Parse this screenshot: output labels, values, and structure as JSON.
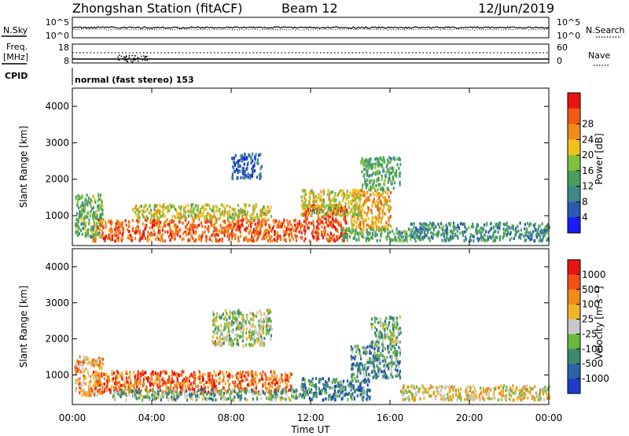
{
  "header": {
    "station": "Zhongshan Station (fitACF)",
    "beam": "Beam 12",
    "date": "12/Jun/2019",
    "cpid_label": "CPID",
    "cpid_value": "normal (fast stereo) 153"
  },
  "noise_panel": {
    "left_label": "N.Sky",
    "left_ticks": [
      "10^5",
      "10^0"
    ],
    "right_label": "N.Search",
    "right_ticks": [
      "10^5",
      "10^0"
    ]
  },
  "freq_panel": {
    "left_label_1": "Freq.",
    "left_label_2": "[MHz]",
    "left_ticks": [
      "18",
      "8"
    ],
    "right_label": "Nave",
    "right_ticks": [
      "60",
      "0"
    ]
  },
  "x_axis": {
    "label": "Time UT",
    "ticks": [
      "00:00",
      "04:00",
      "08:00",
      "12:00",
      "16:00",
      "20:00",
      "00:00"
    ]
  },
  "chart_data": [
    {
      "type": "heatmap",
      "title": "Power",
      "ylabel": "Slant Range [km]",
      "xlabel": "",
      "x_range_hours": [
        0,
        24
      ],
      "ylim": [
        180,
        4500
      ],
      "y_ticks": [
        "1000",
        "2000",
        "3000",
        "4000"
      ],
      "colorbar": {
        "label": "Power [dB]",
        "range": [
          0,
          32
        ],
        "ticks": [
          "4",
          "8",
          "12",
          "16",
          "20",
          "24",
          "28"
        ],
        "colors": [
          "#1a1aff",
          "#2a5ab0",
          "#3d8a8a",
          "#4aa05a",
          "#7dc23a",
          "#f0c020",
          "#f08c1a",
          "#f05a14",
          "#e81414"
        ]
      },
      "regions": [
        {
          "x": [
            1.0,
            11.5
          ],
          "y": [
            300,
            900
          ],
          "level": 26
        },
        {
          "x": [
            11.5,
            13.8
          ],
          "y": [
            300,
            1300
          ],
          "level": 28
        },
        {
          "x": [
            3.0,
            10.0
          ],
          "y": [
            900,
            1300
          ],
          "level": 18
        },
        {
          "x": [
            14.0,
            16.0
          ],
          "y": [
            600,
            1700
          ],
          "level": 22
        },
        {
          "x": [
            13.5,
            17.0
          ],
          "y": [
            300,
            650
          ],
          "level": 12
        },
        {
          "x": [
            17.0,
            24.0
          ],
          "y": [
            300,
            800
          ],
          "level": 10
        },
        {
          "x": [
            0.1,
            1.5
          ],
          "y": [
            400,
            1600
          ],
          "level": 14
        },
        {
          "x": [
            8.0,
            9.5
          ],
          "y": [
            2000,
            2700
          ],
          "level": 6
        },
        {
          "x": [
            14.5,
            16.5
          ],
          "y": [
            1700,
            2600
          ],
          "level": 12
        },
        {
          "x": [
            11.5,
            14.5
          ],
          "y": [
            1000,
            1700
          ],
          "level": 18
        }
      ]
    },
    {
      "type": "heatmap",
      "title": "Velocity",
      "ylabel": "Slant Range [km]",
      "xlabel": "Time UT",
      "x_range_hours": [
        0,
        24
      ],
      "ylim": [
        180,
        4500
      ],
      "y_ticks": [
        "1000",
        "2000",
        "3000",
        "4000"
      ],
      "colorbar": {
        "label": "Velocity [m s⁻¹]",
        "range": [
          -1200,
          1200
        ],
        "ticks": [
          "1000",
          "500",
          "100",
          "25",
          "-25",
          "-100",
          "-500",
          "-1000"
        ],
        "colors": [
          "#1e3cc8",
          "#2a64a6",
          "#3c8a6e",
          "#6ab83c",
          "#c8c8c8",
          "#f0b428",
          "#f08c1a",
          "#f05014",
          "#e81414"
        ]
      },
      "regions": [
        {
          "x": [
            1.0,
            11.0
          ],
          "y": [
            500,
            1100
          ],
          "level": 700
        },
        {
          "x": [
            2.0,
            11.5
          ],
          "y": [
            300,
            600
          ],
          "level": -300
        },
        {
          "x": [
            11.5,
            15.0
          ],
          "y": [
            300,
            900
          ],
          "level": -600
        },
        {
          "x": [
            14.0,
            16.5
          ],
          "y": [
            900,
            1800
          ],
          "level": -500
        },
        {
          "x": [
            16.5,
            24.0
          ],
          "y": [
            300,
            700
          ],
          "level": 150
        },
        {
          "x": [
            0.1,
            1.5
          ],
          "y": [
            400,
            1500
          ],
          "level": 400
        },
        {
          "x": [
            7.0,
            10.0
          ],
          "y": [
            1800,
            2800
          ],
          "level": -80
        },
        {
          "x": [
            15.0,
            16.5
          ],
          "y": [
            1800,
            2600
          ],
          "level": -300
        }
      ]
    }
  ]
}
